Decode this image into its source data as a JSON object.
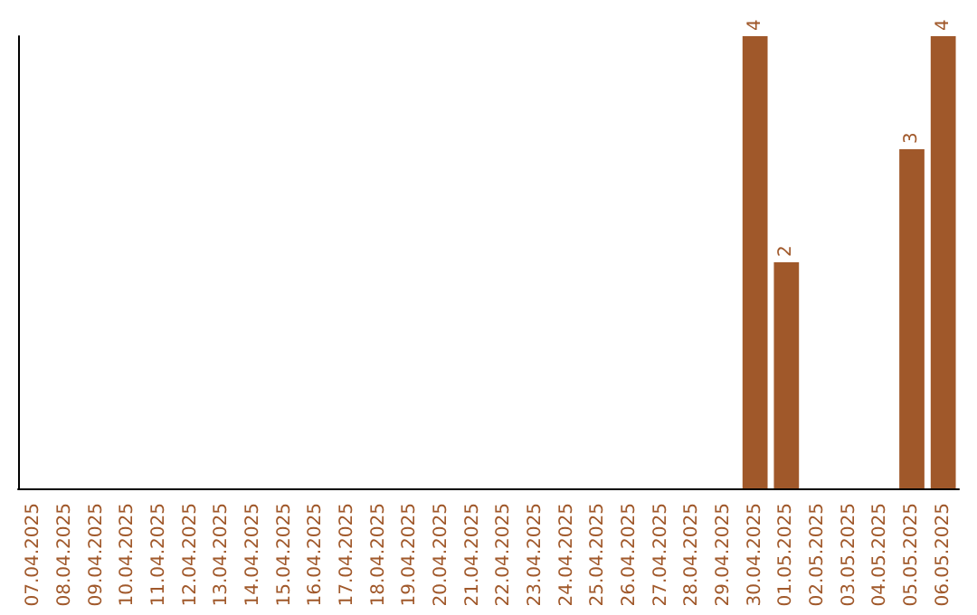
{
  "chart_data": {
    "type": "bar",
    "categories": [
      "07.04.2025",
      "08.04.2025",
      "09.04.2025",
      "10.04.2025",
      "11.04.2025",
      "12.04.2025",
      "13.04.2025",
      "14.04.2025",
      "15.04.2025",
      "16.04.2025",
      "17.04.2025",
      "18.04.2025",
      "19.04.2025",
      "20.04.2025",
      "21.04.2025",
      "22.04.2025",
      "23.04.2025",
      "24.04.2025",
      "25.04.2025",
      "26.04.2025",
      "27.04.2025",
      "28.04.2025",
      "29.04.2025",
      "30.04.2025",
      "01.05.2025",
      "02.05.2025",
      "03.05.2025",
      "04.05.2025",
      "05.05.2025",
      "06.05.2025"
    ],
    "values": [
      null,
      null,
      null,
      null,
      null,
      null,
      null,
      null,
      null,
      null,
      null,
      null,
      null,
      null,
      null,
      null,
      null,
      null,
      null,
      null,
      null,
      null,
      null,
      4,
      2,
      null,
      null,
      null,
      3,
      4
    ],
    "color": "#a0582a",
    "data_labels": true,
    "grid": false,
    "tick_labels": "x"
  }
}
